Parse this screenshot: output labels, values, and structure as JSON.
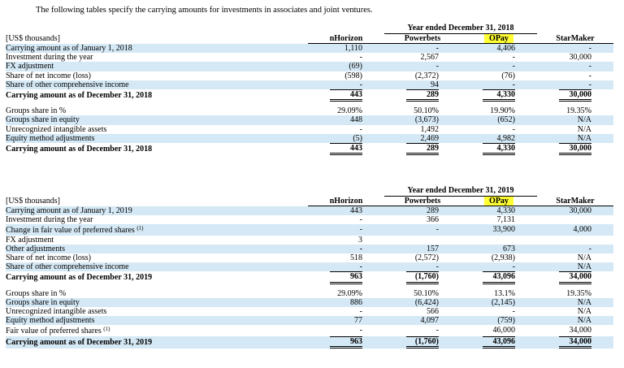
{
  "intro": "The following tables specify the carrying amounts for investments in associates and joint ventures.",
  "columns": [
    "nHorizon",
    "Powerbets",
    "OPay",
    "StarMaker"
  ],
  "unit_label": "[US$ thousands]",
  "table_2018": {
    "period": "Year ended December 31, 2018",
    "rows_a": [
      {
        "label": "Carrying amount as of January 1, 2018",
        "v": [
          "1,110",
          "-",
          "4,406",
          "-"
        ],
        "hl": true
      },
      {
        "label": "Investment during the year",
        "v": [
          "-",
          "2,567",
          "-",
          "30,000"
        ],
        "hl": false
      },
      {
        "label": "FX adjustment",
        "v": [
          "(69)",
          "-",
          "-",
          "-"
        ],
        "hl": true
      },
      {
        "label": "Share of net income (loss)",
        "v": [
          "(598)",
          "(2,372)",
          "(76)",
          "-"
        ],
        "hl": false
      },
      {
        "label": "Share of other comprehensive income",
        "v": [
          "-",
          "94",
          "-",
          "-"
        ],
        "hl": true
      },
      {
        "label": "Carrying amount as of December 31, 2018",
        "v": [
          "443",
          "289",
          "4,330",
          "30,000"
        ],
        "hl": false
      }
    ],
    "rows_b": [
      {
        "label": "Groups share in %",
        "v": [
          "29.09%",
          "50.10%",
          "19.90%",
          "19.35%"
        ],
        "hl": false
      },
      {
        "label": "Groups share in equity",
        "v": [
          "448",
          "(3,673)",
          "(652)",
          "N/A"
        ],
        "hl": true
      },
      {
        "label": "Unrecognized intangible assets",
        "v": [
          "-",
          "1,492",
          "-",
          "N/A"
        ],
        "hl": false
      },
      {
        "label": "Equity method adjustments",
        "v": [
          "(5)",
          "2,469",
          "4,982",
          "N/A"
        ],
        "hl": true
      },
      {
        "label": "Carrying amount as of December 31, 2018",
        "v": [
          "443",
          "289",
          "4,330",
          "30,000"
        ],
        "hl": false
      }
    ]
  },
  "table_2019": {
    "period": "Year ended December 31, 2019",
    "rows_a": [
      {
        "label": "Carrying amount as of January 1, 2019",
        "v": [
          "443",
          "289",
          "4,330",
          "30,000"
        ],
        "hl": true
      },
      {
        "label": "Investment during the year",
        "v": [
          "-",
          "366",
          "7,131",
          ""
        ],
        "hl": false
      },
      {
        "label": "Change in fair value of preferred shares",
        "sup": "(1)",
        "v": [
          "-",
          "-",
          "33,900",
          "4,000"
        ],
        "hl": true
      },
      {
        "label": "FX adjustment",
        "v": [
          "3",
          "",
          "",
          ""
        ],
        "hl": false
      },
      {
        "label": "Other adjustments",
        "v": [
          "-",
          "157",
          "673",
          "-"
        ],
        "hl": true
      },
      {
        "label": "Share of net income (loss)",
        "v": [
          "518",
          "(2,572)",
          "(2,938)",
          "N/A"
        ],
        "hl": false
      },
      {
        "label": "Share of other comprehensive income",
        "v": [
          "-",
          "-",
          "-",
          "N/A"
        ],
        "hl": true
      },
      {
        "label": "Carrying amount as of December 31, 2019",
        "v": [
          "963",
          "(1,760)",
          "43,096",
          "34,000"
        ],
        "hl": false
      }
    ],
    "rows_b": [
      {
        "label": "Groups share in %",
        "v": [
          "29.09%",
          "50.10%",
          "13.1%",
          "19.35%"
        ],
        "hl": false
      },
      {
        "label": "Groups share in equity",
        "v": [
          "886",
          "(6,424)",
          "(2,145)",
          "N/A"
        ],
        "hl": true
      },
      {
        "label": "Unrecognized intangible assets",
        "v": [
          "-",
          "566",
          "-",
          "N/A"
        ],
        "hl": false
      },
      {
        "label": "Equity method adjustments",
        "v": [
          "77",
          "4,097",
          "(759)",
          "N/A"
        ],
        "hl": true
      },
      {
        "label": "Fair value of preferred shares",
        "sup": "(1)",
        "v": [
          "-",
          "-",
          "46,000",
          "34,000"
        ],
        "hl": false
      },
      {
        "label": "Carrying amount as of December 31, 2019",
        "v": [
          "963",
          "(1,760)",
          "43,096",
          "34,000"
        ],
        "hl": true
      }
    ]
  },
  "colors": {
    "highlight_row": "#d4e8f5",
    "opay_marker": "#ffff33"
  }
}
